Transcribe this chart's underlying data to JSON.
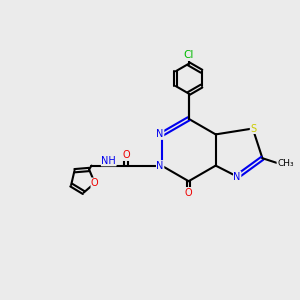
{
  "bg_color": "#ebebeb",
  "line_color": "#000000",
  "bond_width": 1.5,
  "atom_colors": {
    "N": "#0000ee",
    "O": "#ee0000",
    "S": "#cccc00",
    "Cl": "#00bb00",
    "C": "#000000"
  },
  "figsize": [
    3.0,
    3.0
  ],
  "dpi": 100
}
